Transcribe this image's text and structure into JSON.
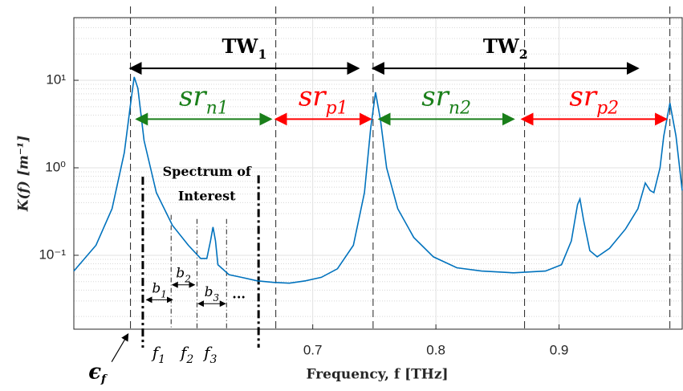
{
  "chart_data": {
    "type": "line",
    "xlabel": "Frequency, f [THz]",
    "ylabel": "K(f) [m⁻¹]",
    "xlim": [
      0.506,
      1.0
    ],
    "xticks": [
      0.7,
      0.8,
      0.9
    ],
    "ylim": [
      0.0143,
      52
    ],
    "log_y": true,
    "grid": true,
    "yticks": [
      {
        "value": 0.1,
        "label": "10⁻¹"
      },
      {
        "value": 1,
        "label": "10⁰"
      },
      {
        "value": 10,
        "label": "10¹"
      }
    ],
    "yminor": [
      0.02,
      0.03,
      0.04,
      0.05,
      0.06,
      0.07,
      0.08,
      0.09,
      0.2,
      0.3,
      0.4,
      0.5,
      0.6,
      0.7,
      0.8,
      0.9,
      2,
      3,
      4,
      5,
      6,
      7,
      8,
      9,
      20,
      30,
      40,
      50
    ],
    "series": [
      {
        "color": "#0072bd",
        "x": [
          0.506,
          0.524,
          0.537,
          0.547,
          0.552,
          0.555,
          0.558,
          0.563,
          0.573,
          0.586,
          0.599,
          0.609,
          0.614,
          0.617,
          0.619,
          0.621,
          0.623,
          0.632,
          0.642,
          0.655,
          0.668,
          0.681,
          0.694,
          0.707,
          0.72,
          0.733,
          0.742,
          0.747,
          0.751,
          0.755,
          0.76,
          0.769,
          0.782,
          0.798,
          0.817,
          0.837,
          0.863,
          0.889,
          0.902,
          0.91,
          0.915,
          0.917,
          0.92,
          0.925,
          0.931,
          0.941,
          0.954,
          0.964,
          0.97,
          0.974,
          0.977,
          0.982,
          0.985,
          0.99,
          0.995,
          1.0
        ],
        "values": [
          0.066,
          0.13,
          0.34,
          1.49,
          5.3,
          10.9,
          8.1,
          2.05,
          0.52,
          0.22,
          0.13,
          0.092,
          0.092,
          0.146,
          0.21,
          0.146,
          0.078,
          0.06,
          0.056,
          0.051,
          0.049,
          0.048,
          0.051,
          0.056,
          0.07,
          0.13,
          0.52,
          2.8,
          7.3,
          3.5,
          1.0,
          0.34,
          0.16,
          0.096,
          0.072,
          0.066,
          0.063,
          0.066,
          0.078,
          0.146,
          0.38,
          0.44,
          0.25,
          0.113,
          0.096,
          0.12,
          0.2,
          0.34,
          0.67,
          0.55,
          0.52,
          1.0,
          2.3,
          5.5,
          2.3,
          0.55
        ]
      }
    ],
    "vlines_dashed": [
      0.552,
      0.67,
      0.749,
      0.872,
      0.99
    ],
    "vlines_thick": [
      {
        "x": 0.562,
        "top": 0.79
      },
      {
        "x": 0.656,
        "top": 0.82
      }
    ],
    "vlines_thin": [
      {
        "x": 0.585,
        "top": 0.29
      },
      {
        "x": 0.606,
        "top": 0.26
      },
      {
        "x": 0.63,
        "top": 0.26
      }
    ],
    "arrows": [
      {
        "label": "TW",
        "sub": "1",
        "style": "bold",
        "color": "#000000",
        "x": [
          0.552,
          0.737
        ],
        "y": 13.7
      },
      {
        "label": "TW",
        "sub": "2",
        "style": "bold",
        "color": "#000000",
        "x": [
          0.749,
          0.964
        ],
        "y": 13.7
      },
      {
        "label": "sr",
        "sub": "n1",
        "style": "italic",
        "color": "#1a7f1a",
        "x": [
          0.557,
          0.666
        ],
        "y": 3.6
      },
      {
        "label": "sr",
        "sub": "p1",
        "style": "italic",
        "color": "#ff0000",
        "x": [
          0.67,
          0.747
        ],
        "y": 3.6
      },
      {
        "label": "sr",
        "sub": "n2",
        "style": "italic",
        "color": "#1a7f1a",
        "x": [
          0.754,
          0.863
        ],
        "y": 3.6
      },
      {
        "label": "sr",
        "sub": "p2",
        "style": "italic",
        "color": "#ff0000",
        "x": [
          0.87,
          0.987
        ],
        "y": 3.6
      },
      {
        "label": "b",
        "sub": "1",
        "style": "small",
        "color": "#000000",
        "x": [
          0.565,
          0.586
        ],
        "y": 0.031
      },
      {
        "label": "b",
        "sub": "2",
        "style": "small",
        "color": "#000000",
        "x": [
          0.586,
          0.604
        ],
        "y": 0.046
      },
      {
        "label": "b",
        "sub": "3",
        "style": "small",
        "color": "#000000",
        "x": [
          0.607,
          0.629
        ],
        "y": 0.028
      }
    ],
    "texts": [
      {
        "text": "Spectrum of",
        "x": 0.614,
        "y": 0.9
      },
      {
        "text": "Interest",
        "x": 0.614,
        "y": 0.47
      },
      {
        "text": "...",
        "x": 0.64,
        "y": 0.036
      },
      {
        "text": "f",
        "sub": "1",
        "x": 0.575,
        "y": 0.0076
      },
      {
        "text": "f",
        "sub": "2",
        "x": 0.598,
        "y": 0.0076
      },
      {
        "text": "f",
        "sub": "3",
        "x": 0.617,
        "y": 0.0076
      },
      {
        "text": "ϵ",
        "sub": "f",
        "x": 0.525,
        "y": 0.0045
      }
    ]
  }
}
